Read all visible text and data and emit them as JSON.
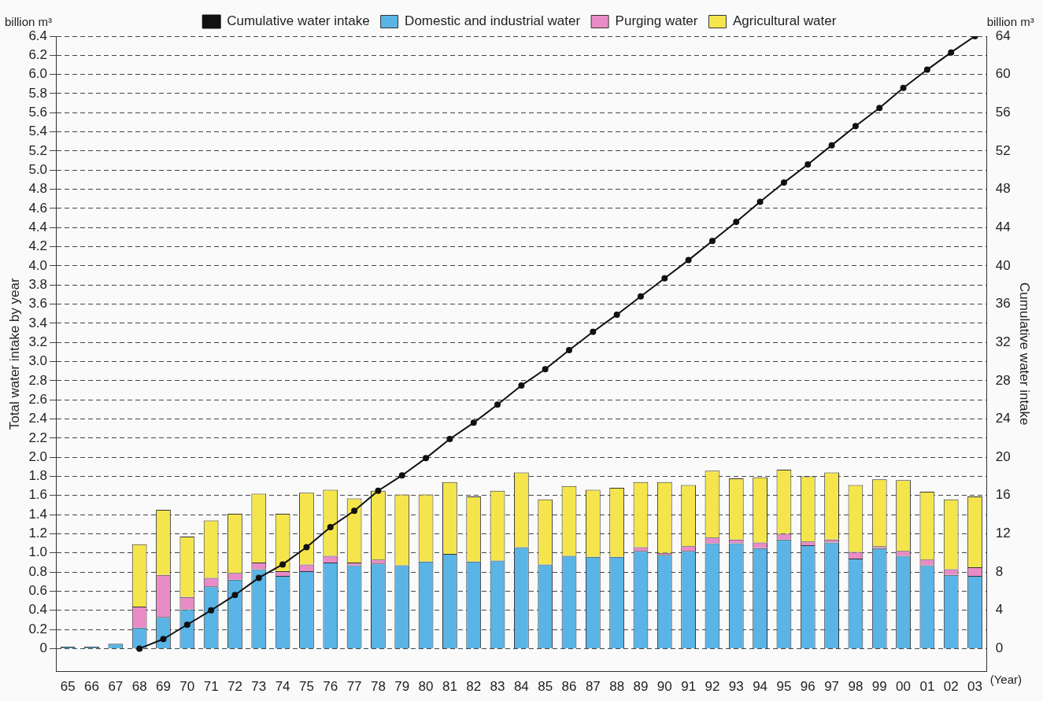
{
  "chart_data": {
    "type": "bar",
    "stacked": true,
    "xlabel": null,
    "ylabel": "Total water intake by year",
    "y2label": "Cumulative water intake",
    "annotations": [
      "billion m³",
      "billion m³",
      "(Year)"
    ],
    "categories": [
      "65",
      "66",
      "67",
      "68",
      "69",
      "70",
      "71",
      "72",
      "73",
      "74",
      "75",
      "76",
      "77",
      "78",
      "79",
      "80",
      "81",
      "82",
      "83",
      "84",
      "85",
      "86",
      "87",
      "88",
      "89",
      "90",
      "91",
      "92",
      "93",
      "94",
      "95",
      "96",
      "97",
      "98",
      "99",
      "00",
      "01",
      "02",
      "03"
    ],
    "series": [
      {
        "name": "Domestic and industrial water",
        "color": "#5ab4e6",
        "values": [
          0.02,
          0.02,
          0.05,
          0.22,
          0.33,
          0.41,
          0.65,
          0.72,
          0.83,
          0.76,
          0.81,
          0.9,
          0.87,
          0.89,
          0.87,
          0.91,
          0.99,
          0.91,
          0.92,
          1.06,
          0.88,
          0.97,
          0.96,
          0.96,
          1.02,
          0.98,
          1.02,
          1.1,
          1.1,
          1.05,
          1.14,
          1.08,
          1.11,
          0.94,
          1.05,
          0.97,
          0.87,
          0.77,
          0.76
        ]
      },
      {
        "name": "Purging water",
        "color": "#e98bc6",
        "values": [
          null,
          null,
          null,
          0.22,
          0.44,
          0.13,
          0.09,
          0.07,
          0.07,
          0.05,
          0.07,
          0.07,
          0.03,
          0.04,
          null,
          null,
          null,
          null,
          null,
          null,
          null,
          null,
          null,
          null,
          0.04,
          0.02,
          0.05,
          0.06,
          0.04,
          0.06,
          0.06,
          0.04,
          0.03,
          0.07,
          0.02,
          0.05,
          0.06,
          0.06,
          0.09
        ]
      },
      {
        "name": "Agricultural water",
        "color": "#f5e54c",
        "values": [
          null,
          null,
          null,
          0.65,
          0.68,
          0.63,
          0.6,
          0.62,
          0.72,
          0.6,
          0.75,
          0.69,
          0.67,
          0.72,
          0.74,
          0.7,
          0.75,
          0.68,
          0.73,
          0.78,
          0.68,
          0.73,
          0.7,
          0.72,
          0.68,
          0.74,
          0.64,
          0.7,
          0.64,
          0.68,
          0.67,
          0.68,
          0.7,
          0.7,
          0.7,
          0.74,
          0.71,
          0.73,
          0.74
        ]
      },
      {
        "name": "Cumulative water intake",
        "type": "line",
        "axis": "y2",
        "color": "#111111",
        "values": [
          null,
          null,
          null,
          0,
          1.0,
          2.5,
          4.0,
          5.6,
          7.4,
          8.8,
          10.6,
          12.7,
          14.4,
          16.5,
          18.1,
          19.9,
          21.9,
          23.6,
          25.5,
          27.5,
          29.2,
          31.2,
          33.1,
          34.9,
          36.8,
          38.7,
          40.6,
          42.6,
          44.6,
          46.7,
          48.7,
          50.6,
          52.6,
          54.6,
          56.5,
          58.6,
          60.5,
          62.3,
          64.0
        ]
      }
    ],
    "ylim": [
      -0.24,
      6.4
    ],
    "yticks": [
      0,
      0.2,
      0.4,
      0.6,
      0.8,
      {
        "value": 1,
        "label": "1.0"
      },
      1.2,
      1.4,
      1.6,
      1.8,
      {
        "value": 2,
        "label": "2.0"
      },
      2.2,
      2.4,
      2.6,
      2.8,
      {
        "value": 3,
        "label": "3.0"
      },
      3.2,
      3.4,
      3.6,
      3.8,
      {
        "value": 4,
        "label": "4.0"
      },
      4.2,
      4.4,
      4.6,
      4.8,
      {
        "value": 5,
        "label": "5.0"
      },
      5.2,
      5.4,
      5.6,
      5.8,
      {
        "value": 6,
        "label": "6.0"
      },
      6.2,
      6.4
    ],
    "y2lim": [
      -2.4,
      64
    ],
    "y2ticks": [
      0,
      4,
      8,
      12,
      16,
      20,
      24,
      28,
      32,
      36,
      40,
      44,
      48,
      52,
      56,
      60,
      64
    ],
    "grid": "y",
    "legend": "top",
    "marker": "circle",
    "line_style": "solid"
  }
}
